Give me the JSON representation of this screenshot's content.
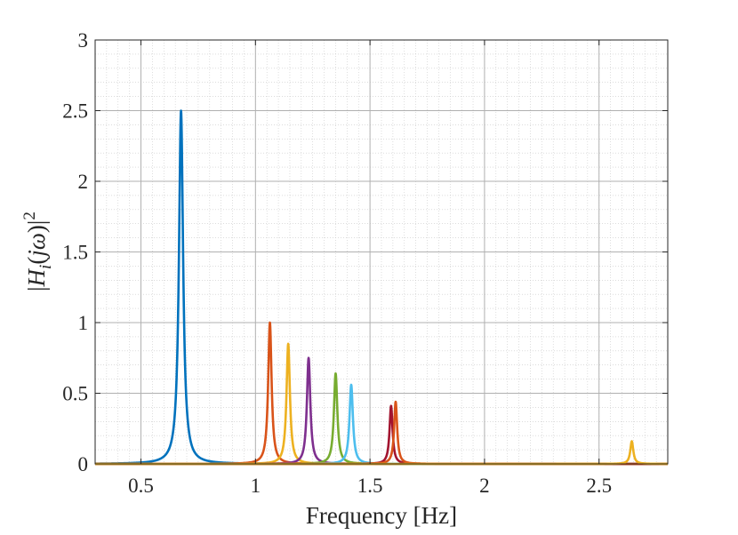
{
  "chart_data": {
    "type": "line",
    "title": "",
    "xlabel": "Frequency [Hz]",
    "ylabel": "|H_i(jω)|²",
    "ylabel_parts": {
      "open": "|",
      "H": "H",
      "sub": "i",
      "arg": "(",
      "j": "j",
      "omega": "ω",
      "close": ")|",
      "sup": "2"
    },
    "xlim": [
      0.3,
      2.8
    ],
    "ylim": [
      0,
      3
    ],
    "xticks": [
      0.5,
      1,
      1.5,
      2,
      2.5
    ],
    "xtick_labels": [
      "0.5",
      "1",
      "1.5",
      "2",
      "2.5"
    ],
    "yticks": [
      0,
      0.5,
      1,
      1.5,
      2,
      2.5,
      3
    ],
    "ytick_labels": [
      "0",
      "0.5",
      "1",
      "1.5",
      "2",
      "2.5",
      "3"
    ],
    "grid": true,
    "minor_grid": true,
    "legend": "none",
    "series": [
      {
        "peak_frequency": 0.675,
        "peak_value": 2.5,
        "color": "#0072BD",
        "halfwidth": 0.011
      },
      {
        "peak_frequency": 1.063,
        "peak_value": 1.0,
        "color": "#D95319",
        "halfwidth": 0.009
      },
      {
        "peak_frequency": 1.143,
        "peak_value": 0.85,
        "color": "#EDB120",
        "halfwidth": 0.009
      },
      {
        "peak_frequency": 1.232,
        "peak_value": 0.75,
        "color": "#7E2F8E",
        "halfwidth": 0.009
      },
      {
        "peak_frequency": 1.35,
        "peak_value": 0.64,
        "color": "#77AC30",
        "halfwidth": 0.009
      },
      {
        "peak_frequency": 1.418,
        "peak_value": 0.56,
        "color": "#4DBEEE",
        "halfwidth": 0.009
      },
      {
        "peak_frequency": 1.592,
        "peak_value": 0.41,
        "color": "#A2142F",
        "halfwidth": 0.008
      },
      {
        "peak_frequency": 1.612,
        "peak_value": 0.44,
        "color": "#D95319",
        "halfwidth": 0.008
      },
      {
        "peak_frequency": 2.643,
        "peak_value": 0.16,
        "color": "#EDB120",
        "halfwidth": 0.008
      }
    ]
  }
}
